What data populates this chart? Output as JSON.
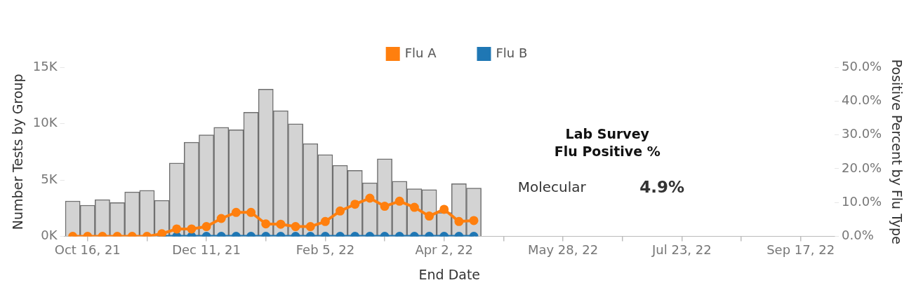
{
  "chart_data": {
    "type": "bar",
    "xlabel": "End Date",
    "ylabel": "Number Tests by Group",
    "y2label": "Positive Percent by Flu Type",
    "x": [
      "2021-10-09",
      "2021-10-16",
      "2021-10-23",
      "2021-10-30",
      "2021-11-06",
      "2021-11-13",
      "2021-11-20",
      "2021-11-27",
      "2021-12-04",
      "2021-12-11",
      "2021-12-18",
      "2021-12-25",
      "2022-01-01",
      "2022-01-08",
      "2022-01-15",
      "2022-01-22",
      "2022-01-29",
      "2022-02-05",
      "2022-02-12",
      "2022-02-19",
      "2022-02-26",
      "2022-03-05",
      "2022-03-12",
      "2022-03-19",
      "2022-03-26",
      "2022-04-02",
      "2022-04-09",
      "2022-04-16"
    ],
    "series": [
      {
        "color": "#d3d3d3",
        "values": [
          3140,
          2770,
          3260,
          2990,
          3940,
          4090,
          3200,
          6510,
          8350,
          9010,
          9670,
          9460,
          11000,
          13060,
          11140,
          9980,
          8220,
          7250,
          6300,
          5850,
          4750,
          6880,
          4890,
          4230,
          4150,
          2110,
          4680,
          4290
        ]
      },
      {
        "type": "line",
        "name": "Flu A",
        "color": "#ff7f0e",
        "axis": "y2",
        "values": [
          0,
          0,
          0,
          0,
          0,
          0,
          0.8,
          2.2,
          2.2,
          2.9,
          5.3,
          7.1,
          7.1,
          3.7,
          3.6,
          2.9,
          2.9,
          4.4,
          7.5,
          9.5,
          11.3,
          8.9,
          10.4,
          8.6,
          6.0,
          8.0,
          4.4,
          4.7
        ]
      },
      {
        "type": "line",
        "name": "Flu B",
        "color": "#1f77b4",
        "axis": "y2",
        "values": [
          null,
          null,
          null,
          null,
          null,
          null,
          0,
          0,
          0,
          0,
          0,
          0,
          0,
          0,
          0,
          0,
          0,
          0,
          0,
          0,
          0,
          0,
          0,
          0,
          0,
          0,
          0,
          0
        ]
      }
    ],
    "xlim": [
      "2021-10-05",
      "2022-10-03"
    ],
    "xticks": [
      {
        "value": "2021-10-16",
        "label": "Oct 16, 21"
      },
      {
        "value": "2021-11-13",
        "label": null
      },
      {
        "value": "2021-12-11",
        "label": "Dec 11, 21"
      },
      {
        "value": "2022-01-08",
        "label": null
      },
      {
        "value": "2022-02-05",
        "label": "Feb 5, 22"
      },
      {
        "value": "2022-03-05",
        "label": null
      },
      {
        "value": "2022-04-02",
        "label": "Apr 2, 22"
      },
      {
        "value": "2022-04-30",
        "label": null
      },
      {
        "value": "2022-05-28",
        "label": "May 28, 22"
      },
      {
        "value": "2022-06-25",
        "label": null
      },
      {
        "value": "2022-07-23",
        "label": "Jul 23, 22"
      },
      {
        "value": "2022-08-20",
        "label": null
      },
      {
        "value": "2022-09-17",
        "label": "Sep 17, 22"
      }
    ],
    "ylim": [
      0,
      15000
    ],
    "yticks": [
      {
        "value": 0,
        "label": "0K"
      },
      {
        "value": 5000,
        "label": "5K"
      },
      {
        "value": 10000,
        "label": "10K"
      },
      {
        "value": 15000,
        "label": "15K"
      }
    ],
    "y2lim": [
      0,
      50
    ],
    "y2ticks": [
      {
        "value": 0,
        "label": "0.0%"
      },
      {
        "value": 10,
        "label": "10.0%"
      },
      {
        "value": 20,
        "label": "20.0%"
      },
      {
        "value": 30,
        "label": "30.0%"
      },
      {
        "value": 40,
        "label": "40.0%"
      },
      {
        "value": 50,
        "label": "50.0%"
      }
    ],
    "annotations": [
      "Lab Survey",
      "Flu Positive %",
      "Molecular",
      "4.9%"
    ],
    "grid": false,
    "legend": "top",
    "marker": "circle",
    "line_style": "solid"
  }
}
